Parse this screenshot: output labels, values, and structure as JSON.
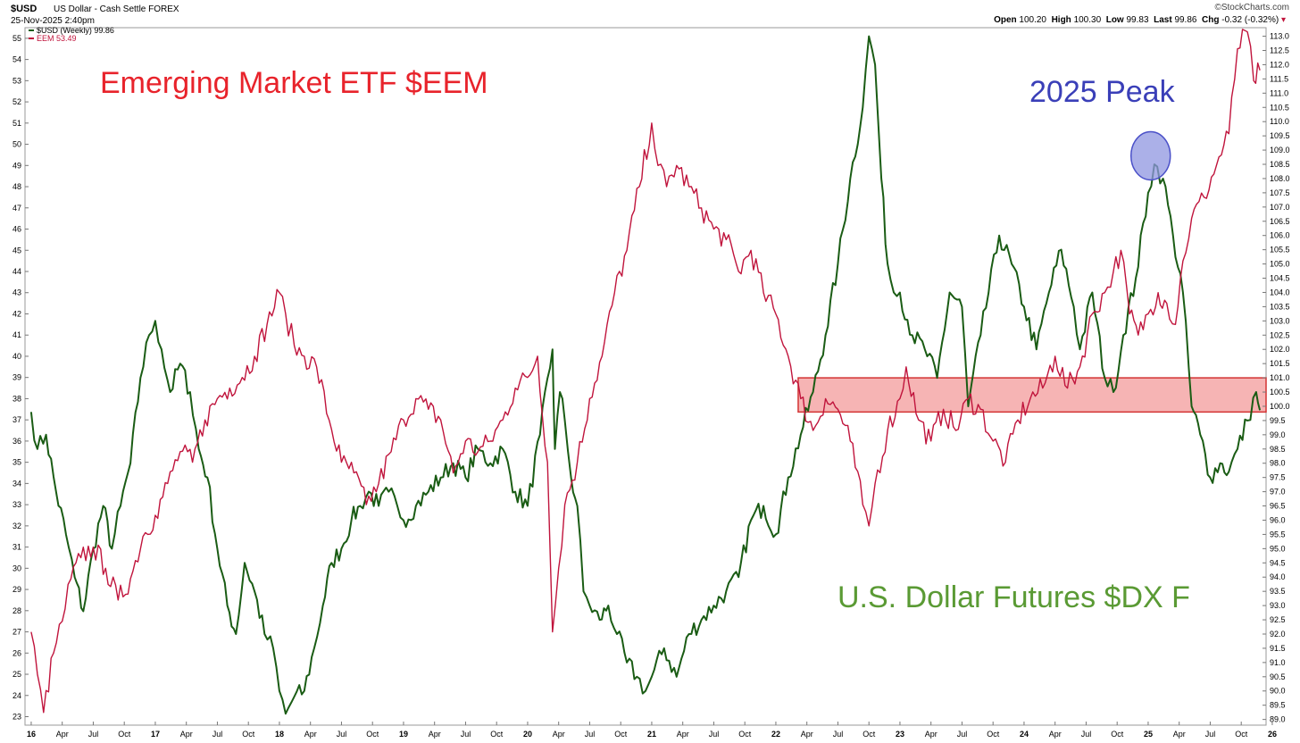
{
  "header": {
    "symbol": "$USD",
    "description": "US Dollar - Cash Settle FOREX",
    "datetime": "25-Nov-2025 2:40pm",
    "brand": "©StockCharts.com",
    "open_label": "Open",
    "open": "100.20",
    "high_label": "High",
    "high": "100.30",
    "low_label": "Low",
    "low": "99.83",
    "last_label": "Last",
    "last": "99.86",
    "chg_label": "Chg",
    "chg": "-0.32 (-0.32%)"
  },
  "colors": {
    "usd": "#1a5c14",
    "eem": "#c0143c",
    "zone_fill": "#f4a7a7",
    "zone_stroke": "#d33333",
    "peak_fill": "#8f95e0",
    "peak_stroke": "#4a50c8"
  },
  "chart_data": {
    "type": "line",
    "x_ticks": [
      "16",
      "Apr",
      "Jul",
      "Oct",
      "17",
      "Apr",
      "Jul",
      "Oct",
      "18",
      "Apr",
      "Jul",
      "Oct",
      "19",
      "Apr",
      "Jul",
      "Oct",
      "20",
      "Apr",
      "Jul",
      "Oct",
      "21",
      "Apr",
      "Jul",
      "Oct",
      "22",
      "Apr",
      "Jul",
      "Oct",
      "23",
      "Apr",
      "Jul",
      "Oct",
      "24",
      "Apr",
      "Jul",
      "Oct",
      "25",
      "Apr",
      "Jul",
      "Oct",
      "26"
    ],
    "x_range": [
      2015.95,
      2025.95
    ],
    "left_axis": {
      "ticks": [
        23,
        24,
        25,
        26,
        27,
        28,
        29,
        30,
        31,
        32,
        33,
        34,
        35,
        36,
        37,
        38,
        39,
        40,
        41,
        42,
        43,
        44,
        45,
        46,
        47,
        48,
        49,
        50,
        51,
        52,
        53,
        54,
        55
      ],
      "range": [
        22.6,
        55.5
      ]
    },
    "right_axis": {
      "ticks": [
        "113.0",
        "112.5",
        "112.0",
        "111.5",
        "111.0",
        "110.5",
        "110.0",
        "109.5",
        "109.0",
        "108.5",
        "108.0",
        "107.5",
        "107.0",
        "106.5",
        "106.0",
        "105.5",
        "105.0",
        "104.5",
        "104.0",
        "103.5",
        "103.0",
        "102.5",
        "102.0",
        "101.5",
        "101.0",
        "100.5",
        "100.0",
        "99.5",
        "99.0",
        "98.5",
        "98.0",
        "97.5",
        "97.0",
        "96.5",
        "96.0",
        "95.5",
        "95.0",
        "94.5",
        "94.0",
        "93.5",
        "93.0",
        "92.5",
        "92.0",
        "91.5",
        "91.0",
        "90.5",
        "90.0",
        "89.5",
        "89.0"
      ],
      "range": [
        88.8,
        113.3
      ]
    },
    "legend": [
      {
        "label": "$USD (Weekly) 99.86",
        "color": "#1a5c14"
      },
      {
        "label": "EEM 53.49",
        "color": "#c0143c"
      }
    ],
    "series": [
      {
        "name": "$USD (Weekly) 99.86",
        "axis": "right",
        "x": [
          2016.0,
          2016.05,
          2016.12,
          2016.2,
          2016.28,
          2016.35,
          2016.42,
          2016.5,
          2016.58,
          2016.65,
          2016.72,
          2016.8,
          2016.88,
          2016.95,
          2017.0,
          2017.05,
          2017.12,
          2017.2,
          2017.28,
          2017.35,
          2017.42,
          2017.5,
          2017.58,
          2017.65,
          2017.72,
          2017.8,
          2017.88,
          2017.95,
          2018.0,
          2018.05,
          2018.12,
          2018.2,
          2018.28,
          2018.35,
          2018.42,
          2018.5,
          2018.58,
          2018.65,
          2018.72,
          2018.8,
          2018.88,
          2018.95,
          2019.0,
          2019.1,
          2019.2,
          2019.3,
          2019.4,
          2019.5,
          2019.6,
          2019.7,
          2019.8,
          2019.9,
          2020.0,
          2020.1,
          2020.2,
          2020.22,
          2020.26,
          2020.3,
          2020.35,
          2020.4,
          2020.45,
          2020.5,
          2020.58,
          2020.65,
          2020.72,
          2020.8,
          2020.88,
          2020.95,
          2021.0,
          2021.1,
          2021.2,
          2021.3,
          2021.4,
          2021.5,
          2021.6,
          2021.7,
          2021.8,
          2021.9,
          2022.0,
          2022.1,
          2022.2,
          2022.3,
          2022.4,
          2022.5,
          2022.6,
          2022.7,
          2022.75,
          2022.8,
          2022.85,
          2022.9,
          2022.95,
          2023.0,
          2023.1,
          2023.2,
          2023.3,
          2023.4,
          2023.5,
          2023.55,
          2023.65,
          2023.8,
          2023.9,
          2024.0,
          2024.1,
          2024.2,
          2024.3,
          2024.4,
          2024.45,
          2024.55,
          2024.65,
          2024.72,
          2024.8,
          2024.9,
          2025.0,
          2025.05,
          2025.12,
          2025.2,
          2025.28,
          2025.35,
          2025.42,
          2025.5,
          2025.58,
          2025.65,
          2025.72,
          2025.8,
          2025.87,
          2025.9
        ],
        "y": [
          99.8,
          98.5,
          99.0,
          97.0,
          95.5,
          94.0,
          92.8,
          95.0,
          96.5,
          95.0,
          96.5,
          98.0,
          101.0,
          102.5,
          103.0,
          102.0,
          100.5,
          101.5,
          100.5,
          98.5,
          97.5,
          95.0,
          93.0,
          92.0,
          94.5,
          93.5,
          92.0,
          91.5,
          90.0,
          89.2,
          89.8,
          90.0,
          91.5,
          93.0,
          94.5,
          95.0,
          96.0,
          96.5,
          97.0,
          96.5,
          97.0,
          96.5,
          96.0,
          96.5,
          97.0,
          97.5,
          98.0,
          97.5,
          98.5,
          98.0,
          98.5,
          97.0,
          96.5,
          99.0,
          102.0,
          98.5,
          100.5,
          99.5,
          97.5,
          96.5,
          93.5,
          93.0,
          92.5,
          93.0,
          92.0,
          91.0,
          90.5,
          90.0,
          90.5,
          91.5,
          90.5,
          92.0,
          92.5,
          93.0,
          93.5,
          94.0,
          96.0,
          96.5,
          95.5,
          97.5,
          99.0,
          100.5,
          102.5,
          105.0,
          108.0,
          110.5,
          113.0,
          112.0,
          108.0,
          105.0,
          104.0,
          104.0,
          102.5,
          102.0,
          101.0,
          104.0,
          103.5,
          100.0,
          102.5,
          106.0,
          105.0,
          103.5,
          102.0,
          104.0,
          105.5,
          103.5,
          102.0,
          104.0,
          101.0,
          100.5,
          102.5,
          104.5,
          107.5,
          108.5,
          108.0,
          106.0,
          104.0,
          100.0,
          99.0,
          97.5,
          98.0,
          97.7,
          98.5,
          99.5,
          100.5,
          99.86
        ]
      },
      {
        "name": "EEM 53.49",
        "axis": "left",
        "x": [
          2016.0,
          2016.05,
          2016.1,
          2016.18,
          2016.25,
          2016.32,
          2016.4,
          2016.5,
          2016.6,
          2016.7,
          2016.8,
          2016.9,
          2017.0,
          2017.1,
          2017.2,
          2017.3,
          2017.4,
          2017.5,
          2017.6,
          2017.7,
          2017.8,
          2017.9,
          2018.0,
          2018.05,
          2018.12,
          2018.2,
          2018.3,
          2018.4,
          2018.5,
          2018.6,
          2018.7,
          2018.8,
          2018.9,
          2019.0,
          2019.1,
          2019.2,
          2019.3,
          2019.4,
          2019.5,
          2019.6,
          2019.7,
          2019.8,
          2019.9,
          2020.0,
          2020.08,
          2020.16,
          2020.2,
          2020.25,
          2020.3,
          2020.4,
          2020.5,
          2020.6,
          2020.7,
          2020.8,
          2020.9,
          2021.0,
          2021.05,
          2021.12,
          2021.2,
          2021.3,
          2021.4,
          2021.5,
          2021.6,
          2021.7,
          2021.8,
          2021.9,
          2022.0,
          2022.1,
          2022.2,
          2022.3,
          2022.4,
          2022.5,
          2022.6,
          2022.7,
          2022.75,
          2022.8,
          2022.9,
          2023.0,
          2023.05,
          2023.15,
          2023.25,
          2023.35,
          2023.45,
          2023.55,
          2023.65,
          2023.75,
          2023.85,
          2023.95,
          2024.05,
          2024.15,
          2024.25,
          2024.35,
          2024.45,
          2024.55,
          2024.65,
          2024.72,
          2024.78,
          2024.85,
          2024.92,
          2025.0,
          2025.08,
          2025.15,
          2025.22,
          2025.28,
          2025.35,
          2025.45,
          2025.55,
          2025.65,
          2025.72,
          2025.8,
          2025.85,
          2025.9
        ],
        "y": [
          27.0,
          25.0,
          23.2,
          26.0,
          27.5,
          29.5,
          30.5,
          31.0,
          30.0,
          28.5,
          29.5,
          31.5,
          32.5,
          34.0,
          35.5,
          35.0,
          37.0,
          38.0,
          38.5,
          39.0,
          40.0,
          41.5,
          43.0,
          42.0,
          40.5,
          40.0,
          39.5,
          37.0,
          35.0,
          34.5,
          33.0,
          34.0,
          35.5,
          37.0,
          38.0,
          37.5,
          37.0,
          34.5,
          36.0,
          35.5,
          36.0,
          37.0,
          38.5,
          39.0,
          40.0,
          35.0,
          27.0,
          30.0,
          33.0,
          35.0,
          38.0,
          40.0,
          43.0,
          45.0,
          48.0,
          51.0,
          49.0,
          48.0,
          49.0,
          48.0,
          47.0,
          46.0,
          45.5,
          44.0,
          45.0,
          43.0,
          42.0,
          40.0,
          38.0,
          36.5,
          38.0,
          37.5,
          36.0,
          33.0,
          32.0,
          34.0,
          36.5,
          38.0,
          39.5,
          37.0,
          36.0,
          37.5,
          36.5,
          38.0,
          37.5,
          36.0,
          35.0,
          37.0,
          38.0,
          38.5,
          40.0,
          38.5,
          39.5,
          42.0,
          43.0,
          44.0,
          45.0,
          42.0,
          41.0,
          42.0,
          43.0,
          42.5,
          41.5,
          44.5,
          46.5,
          47.5,
          49.0,
          50.5,
          54.5,
          55.3,
          53.0,
          53.49
        ]
      }
    ],
    "annotations": [
      {
        "text": "Emerging Market ETF $EEM",
        "color": "#e8232b"
      },
      {
        "text": "2025 Peak",
        "color": "#3a3fb8"
      },
      {
        "text": "U.S. Dollar Futures $DX F",
        "color": "#5a9a34"
      }
    ],
    "support_zone": {
      "axis": "right",
      "y_low": 99.8,
      "y_high": 101.0,
      "x_start": 2022.18,
      "x_end": 2025.95
    },
    "peak_marker": {
      "x": 2025.02,
      "y": 108.8
    }
  }
}
